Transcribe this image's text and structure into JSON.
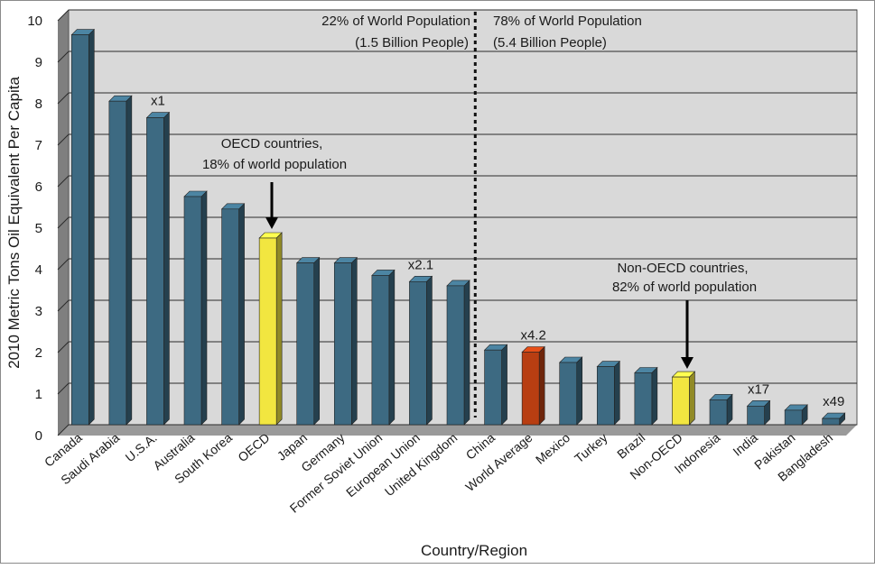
{
  "chart_data": {
    "type": "bar",
    "title": "",
    "xlabel": "Country/Region",
    "ylabel": "2010 Metric Tons Oil Equivalent Per Capita",
    "ylim": [
      0,
      10
    ],
    "yticks": [
      "0",
      "1",
      "2",
      "3",
      "4",
      "5",
      "6",
      "7",
      "8",
      "9",
      "10"
    ],
    "grid": true,
    "categories": [
      "Canada",
      "Saudi Arabia",
      "U.S.A.",
      "Australia",
      "South Korea",
      "OECD",
      "Japan",
      "Germany",
      "Former Soviet Union",
      "European Union",
      "United Kingdom",
      "China",
      "World Average",
      "Mexico",
      "Turkey",
      "Brazil",
      "Non-OECD",
      "Indonesia",
      "India",
      "Pakistan",
      "Bangladesh"
    ],
    "values": [
      9.4,
      7.8,
      7.4,
      5.5,
      5.2,
      4.5,
      3.9,
      3.9,
      3.6,
      3.45,
      3.35,
      1.8,
      1.75,
      1.5,
      1.4,
      1.25,
      1.15,
      0.6,
      0.45,
      0.35,
      0.15
    ],
    "bar_colors": [
      "#3d6a82",
      "#3d6a82",
      "#3d6a82",
      "#3d6a82",
      "#3d6a82",
      "#f2e640",
      "#3d6a82",
      "#3d6a82",
      "#3d6a82",
      "#3d6a82",
      "#3d6a82",
      "#3d6a82",
      "#b83e12",
      "#3d6a82",
      "#3d6a82",
      "#3d6a82",
      "#f2e640",
      "#3d6a82",
      "#3d6a82",
      "#3d6a82",
      "#3d6a82"
    ],
    "multipliers": [
      {
        "category": "U.S.A.",
        "label": "x1"
      },
      {
        "category": "European Union",
        "label": "x2.1"
      },
      {
        "category": "World Average",
        "label": "x4.2"
      },
      {
        "category": "India",
        "label": "x17"
      },
      {
        "category": "Bangladesh",
        "label": "x49"
      }
    ],
    "divider_after": "United Kingdom",
    "annotations": {
      "left_pop_line1": "22% of World Population",
      "left_pop_line2": "(1.5 Billion People)",
      "right_pop_line1": "78% of World Population",
      "right_pop_line2": "(5.4 Billion People)",
      "oecd_line1": "OECD countries,",
      "oecd_line2": "18% of world population",
      "nonoecd_line1": "Non-OECD countries,",
      "nonoecd_line2": "82% of world population"
    },
    "colors": {
      "plot_background": "#d9d9d9",
      "wall": "#7f7f7f",
      "grid": "#2a2a2a",
      "default_bar": "#3d6a82",
      "highlight_bar": "#f2e640",
      "world_average_bar": "#b83e12"
    }
  }
}
